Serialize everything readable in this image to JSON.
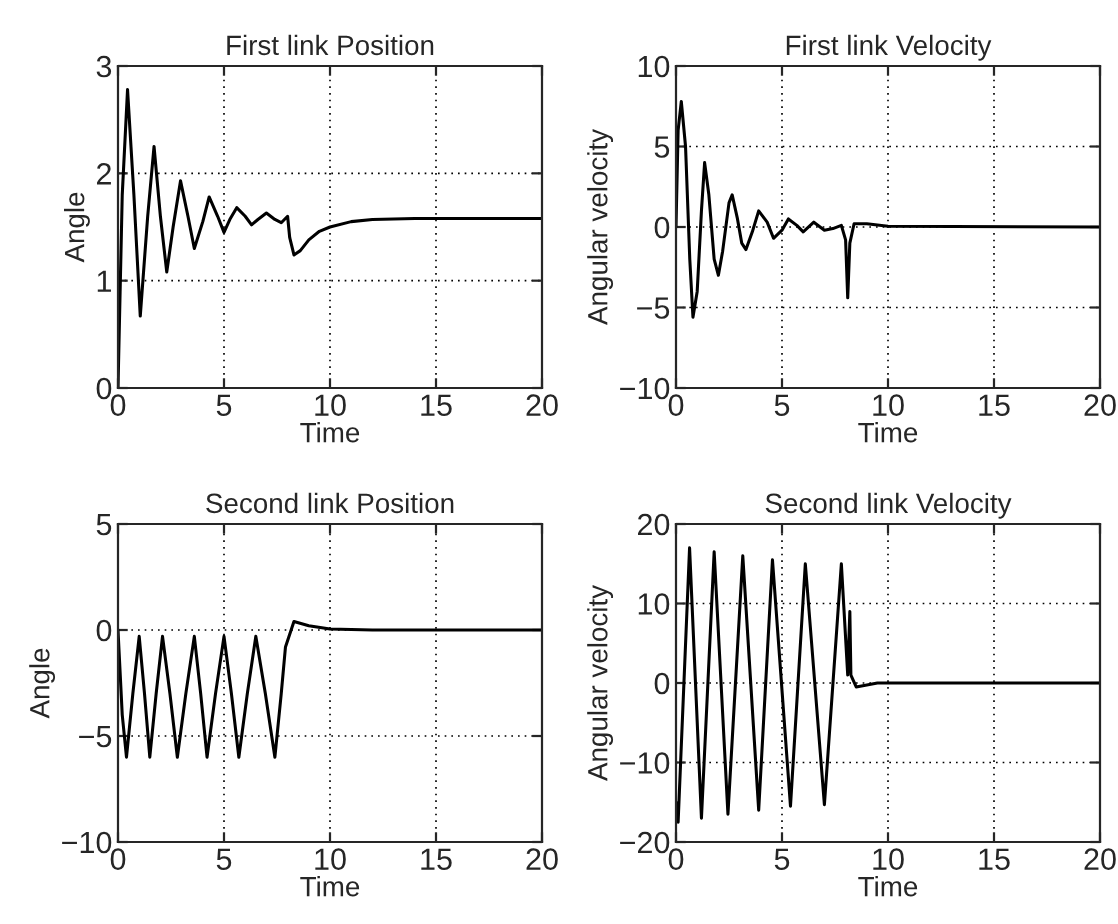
{
  "chart_data": [
    {
      "type": "line",
      "title": "First link Position",
      "xlabel": "Time",
      "ylabel": "Angle",
      "xlim": [
        0,
        20
      ],
      "ylim": [
        0,
        3
      ],
      "xticks": [
        0,
        5,
        10,
        15,
        20
      ],
      "yticks": [
        0,
        1,
        2,
        3
      ],
      "grid": true,
      "line_style": "solid",
      "series": [
        {
          "color": "#000000",
          "x": [
            0,
            0.2,
            0.45,
            0.75,
            1.05,
            1.4,
            1.7,
            2.0,
            2.3,
            2.6,
            2.95,
            3.3,
            3.6,
            4.0,
            4.3,
            4.7,
            5.0,
            5.3,
            5.6,
            6.0,
            6.3,
            6.6,
            7.0,
            7.4,
            7.7,
            8.0,
            8.1,
            8.3,
            8.6,
            9.0,
            9.5,
            10,
            11,
            12,
            14,
            20
          ],
          "values": [
            0,
            1.8,
            2.78,
            1.8,
            0.67,
            1.6,
            2.25,
            1.6,
            1.08,
            1.5,
            1.93,
            1.6,
            1.3,
            1.55,
            1.78,
            1.6,
            1.45,
            1.58,
            1.68,
            1.6,
            1.52,
            1.57,
            1.63,
            1.57,
            1.54,
            1.6,
            1.4,
            1.24,
            1.28,
            1.38,
            1.46,
            1.5,
            1.55,
            1.57,
            1.58,
            1.58
          ]
        }
      ]
    },
    {
      "type": "line",
      "title": "First link Velocity",
      "xlabel": "Time",
      "ylabel": "Angular velocity",
      "xlim": [
        0,
        20
      ],
      "ylim": [
        -10,
        10
      ],
      "xticks": [
        0,
        5,
        10,
        15,
        20
      ],
      "yticks": [
        {
          "value": -10,
          "label": "−10"
        },
        {
          "value": -5,
          "label": "−5"
        },
        0,
        5,
        10
      ],
      "grid": true,
      "line_style": "solid",
      "series": [
        {
          "color": "#000000",
          "x": [
            0,
            0.1,
            0.25,
            0.45,
            0.65,
            0.8,
            1.0,
            1.2,
            1.35,
            1.55,
            1.8,
            2.0,
            2.2,
            2.5,
            2.65,
            2.9,
            3.1,
            3.3,
            3.6,
            3.9,
            4.3,
            4.6,
            5.0,
            5.3,
            5.7,
            6.0,
            6.5,
            7.0,
            7.4,
            7.8,
            8.0,
            8.1,
            8.2,
            8.4,
            9,
            10,
            20
          ],
          "values": [
            0,
            6,
            7.8,
            5,
            -2,
            -5.6,
            -4,
            1,
            4,
            2,
            -2,
            -3,
            -1.5,
            1.5,
            2,
            0.5,
            -1,
            -1.4,
            -0.3,
            1,
            0.3,
            -0.7,
            -0.2,
            0.5,
            0.1,
            -0.3,
            0.3,
            -0.2,
            -0.1,
            0.1,
            -0.8,
            -4.4,
            -1,
            0.2,
            0.2,
            0.05,
            0
          ]
        }
      ]
    },
    {
      "type": "line",
      "title": "Second link Position",
      "xlabel": "Time",
      "ylabel": "Angle",
      "xlim": [
        0,
        20
      ],
      "ylim": [
        -10,
        5
      ],
      "xticks": [
        0,
        5,
        10,
        15,
        20
      ],
      "yticks": [
        {
          "value": -10,
          "label": "−10"
        },
        {
          "value": -5,
          "label": "−5"
        },
        0,
        5
      ],
      "grid": true,
      "line_style": "solid",
      "series": [
        {
          "color": "#000000",
          "x": [
            0,
            0.2,
            0.4,
            0.7,
            1.0,
            1.25,
            1.5,
            1.8,
            2.1,
            2.45,
            2.8,
            3.2,
            3.6,
            3.9,
            4.2,
            4.6,
            5.0,
            5.35,
            5.7,
            6.1,
            6.5,
            6.95,
            7.4,
            7.7,
            7.9,
            8.3,
            9,
            10,
            12,
            20
          ],
          "values": [
            0,
            -4,
            -6,
            -3,
            -0.3,
            -3,
            -6,
            -3,
            -0.3,
            -3,
            -6,
            -3,
            -0.3,
            -3,
            -6,
            -3,
            -0.3,
            -3,
            -6,
            -3,
            -0.3,
            -3,
            -6,
            -3,
            -0.8,
            0.4,
            0.2,
            0.05,
            0,
            0
          ]
        }
      ]
    },
    {
      "type": "line",
      "title": "Second link Velocity",
      "xlabel": "Time",
      "ylabel": "Angular velocity",
      "xlim": [
        0,
        20
      ],
      "ylim": [
        -20,
        20
      ],
      "xticks": [
        0,
        5,
        10,
        15,
        20
      ],
      "yticks": [
        {
          "value": -20,
          "label": "−20"
        },
        {
          "value": -10,
          "label": "−10"
        },
        0,
        10,
        20
      ],
      "grid": true,
      "line_style": "solid",
      "series": [
        {
          "color": "#000000",
          "x": [
            0,
            0.1,
            0.64,
            1.2,
            1.8,
            2.45,
            3.15,
            3.9,
            4.55,
            5.4,
            6.1,
            7.0,
            7.8,
            8.1,
            8.2,
            8.25,
            8.5,
            9.5,
            20
          ],
          "values": [
            -15,
            -17.5,
            17,
            -17,
            16.5,
            -16.5,
            16,
            -16,
            15.5,
            -15.5,
            15,
            -15.3,
            15,
            1,
            9,
            1,
            -0.5,
            0,
            0
          ]
        }
      ]
    }
  ]
}
